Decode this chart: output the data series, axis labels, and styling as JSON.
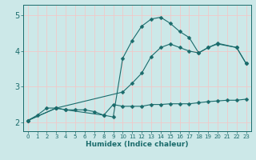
{
  "xlabel": "Humidex (Indice chaleur)",
  "bg_color": "#cce8e8",
  "grid_color_v": "#f0c8c8",
  "grid_color_h": "#f0c8c8",
  "line_color": "#1a6b6b",
  "xlim": [
    -0.5,
    23.5
  ],
  "ylim": [
    1.75,
    5.3
  ],
  "yticks": [
    2,
    3,
    4,
    5
  ],
  "xticks": [
    0,
    1,
    2,
    3,
    4,
    5,
    6,
    7,
    8,
    9,
    10,
    11,
    12,
    13,
    14,
    15,
    16,
    17,
    18,
    19,
    20,
    21,
    22,
    23
  ],
  "curve1_x": [
    0,
    1,
    2,
    3,
    4,
    5,
    6,
    7,
    8,
    9,
    10,
    11,
    12,
    13,
    14,
    15,
    16,
    17,
    18,
    19,
    20,
    21,
    22,
    23
  ],
  "curve1_y": [
    2.05,
    2.2,
    2.4,
    2.4,
    2.35,
    2.35,
    2.35,
    2.3,
    2.2,
    2.5,
    2.45,
    2.45,
    2.45,
    2.5,
    2.5,
    2.52,
    2.52,
    2.52,
    2.55,
    2.58,
    2.6,
    2.62,
    2.62,
    2.65
  ],
  "curve2_x": [
    0,
    3,
    4,
    8,
    9,
    10,
    11,
    12,
    13,
    14,
    15,
    16,
    17,
    18,
    19,
    20,
    22,
    23
  ],
  "curve2_y": [
    2.05,
    2.4,
    2.35,
    2.2,
    2.15,
    3.8,
    4.3,
    4.7,
    4.9,
    4.95,
    4.78,
    4.55,
    4.38,
    3.95,
    4.1,
    4.2,
    4.1,
    3.65
  ],
  "curve3_x": [
    0,
    3,
    10,
    11,
    12,
    13,
    14,
    15,
    16,
    17,
    18,
    19,
    20,
    22,
    23
  ],
  "curve3_y": [
    2.05,
    2.4,
    2.85,
    3.1,
    3.38,
    3.85,
    4.1,
    4.2,
    4.1,
    4.0,
    3.95,
    4.1,
    4.22,
    4.1,
    3.65
  ],
  "marker": "D",
  "markersize": 2.5
}
